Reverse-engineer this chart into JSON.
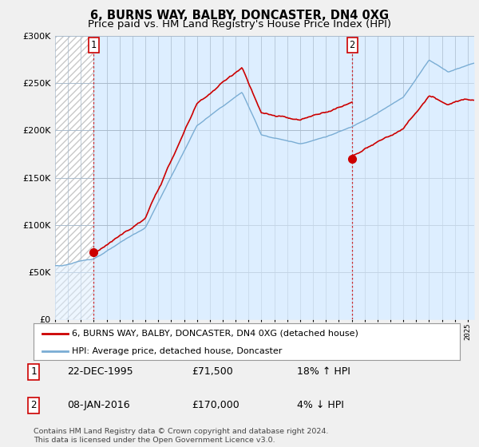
{
  "title": "6, BURNS WAY, BALBY, DONCASTER, DN4 0XG",
  "subtitle": "Price paid vs. HM Land Registry's House Price Index (HPI)",
  "ylim": [
    0,
    300000
  ],
  "yticks": [
    0,
    50000,
    100000,
    150000,
    200000,
    250000,
    300000
  ],
  "sale1_date": 1995.98,
  "sale1_price": 71500,
  "sale2_date": 2016.04,
  "sale2_price": 170000,
  "house_color": "#cc0000",
  "hpi_color": "#7aadd4",
  "hpi_fill_color": "#ddeeff",
  "background_color": "#f0f0f0",
  "plot_bg_color": "#ddeeff",
  "hatch_color": "#c8c8c8",
  "grid_color": "#aabbcc",
  "legend_house": "6, BURNS WAY, BALBY, DONCASTER, DN4 0XG (detached house)",
  "legend_hpi": "HPI: Average price, detached house, Doncaster",
  "annotation1_date": "22-DEC-1995",
  "annotation1_price": "£71,500",
  "annotation1_hpi": "18% ↑ HPI",
  "annotation2_date": "08-JAN-2016",
  "annotation2_price": "£170,000",
  "annotation2_hpi": "4% ↓ HPI",
  "footer": "Contains HM Land Registry data © Crown copyright and database right 2024.\nThis data is licensed under the Open Government Licence v3.0.",
  "xstart": 1993,
  "xend": 2025.5
}
